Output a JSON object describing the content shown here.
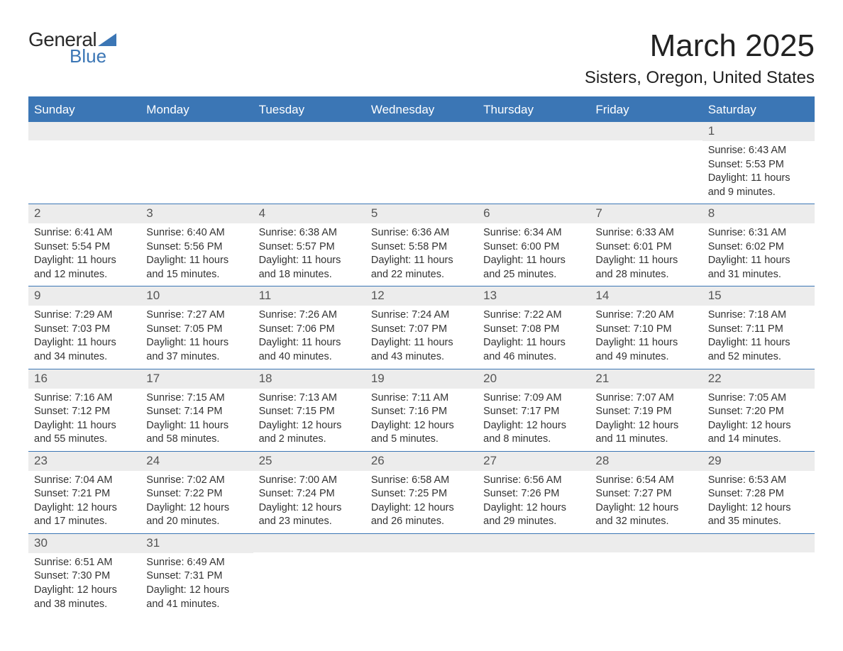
{
  "logo": {
    "word1": "General",
    "word2": "Blue"
  },
  "title": "March 2025",
  "location": "Sisters, Oregon, United States",
  "colors": {
    "header_bg": "#3b76b5",
    "header_text": "#ffffff",
    "daynum_bg": "#ececec",
    "daynum_text": "#555555",
    "body_text": "#333333",
    "rule": "#3b76b5"
  },
  "columns": [
    "Sunday",
    "Monday",
    "Tuesday",
    "Wednesday",
    "Thursday",
    "Friday",
    "Saturday"
  ],
  "weeks": [
    [
      {
        "blank": true
      },
      {
        "blank": true
      },
      {
        "blank": true
      },
      {
        "blank": true
      },
      {
        "blank": true
      },
      {
        "blank": true
      },
      {
        "day": "1",
        "sunrise": "Sunrise: 6:43 AM",
        "sunset": "Sunset: 5:53 PM",
        "daylight": "Daylight: 11 hours and 9 minutes."
      }
    ],
    [
      {
        "day": "2",
        "sunrise": "Sunrise: 6:41 AM",
        "sunset": "Sunset: 5:54 PM",
        "daylight": "Daylight: 11 hours and 12 minutes."
      },
      {
        "day": "3",
        "sunrise": "Sunrise: 6:40 AM",
        "sunset": "Sunset: 5:56 PM",
        "daylight": "Daylight: 11 hours and 15 minutes."
      },
      {
        "day": "4",
        "sunrise": "Sunrise: 6:38 AM",
        "sunset": "Sunset: 5:57 PM",
        "daylight": "Daylight: 11 hours and 18 minutes."
      },
      {
        "day": "5",
        "sunrise": "Sunrise: 6:36 AM",
        "sunset": "Sunset: 5:58 PM",
        "daylight": "Daylight: 11 hours and 22 minutes."
      },
      {
        "day": "6",
        "sunrise": "Sunrise: 6:34 AM",
        "sunset": "Sunset: 6:00 PM",
        "daylight": "Daylight: 11 hours and 25 minutes."
      },
      {
        "day": "7",
        "sunrise": "Sunrise: 6:33 AM",
        "sunset": "Sunset: 6:01 PM",
        "daylight": "Daylight: 11 hours and 28 minutes."
      },
      {
        "day": "8",
        "sunrise": "Sunrise: 6:31 AM",
        "sunset": "Sunset: 6:02 PM",
        "daylight": "Daylight: 11 hours and 31 minutes."
      }
    ],
    [
      {
        "day": "9",
        "sunrise": "Sunrise: 7:29 AM",
        "sunset": "Sunset: 7:03 PM",
        "daylight": "Daylight: 11 hours and 34 minutes."
      },
      {
        "day": "10",
        "sunrise": "Sunrise: 7:27 AM",
        "sunset": "Sunset: 7:05 PM",
        "daylight": "Daylight: 11 hours and 37 minutes."
      },
      {
        "day": "11",
        "sunrise": "Sunrise: 7:26 AM",
        "sunset": "Sunset: 7:06 PM",
        "daylight": "Daylight: 11 hours and 40 minutes."
      },
      {
        "day": "12",
        "sunrise": "Sunrise: 7:24 AM",
        "sunset": "Sunset: 7:07 PM",
        "daylight": "Daylight: 11 hours and 43 minutes."
      },
      {
        "day": "13",
        "sunrise": "Sunrise: 7:22 AM",
        "sunset": "Sunset: 7:08 PM",
        "daylight": "Daylight: 11 hours and 46 minutes."
      },
      {
        "day": "14",
        "sunrise": "Sunrise: 7:20 AM",
        "sunset": "Sunset: 7:10 PM",
        "daylight": "Daylight: 11 hours and 49 minutes."
      },
      {
        "day": "15",
        "sunrise": "Sunrise: 7:18 AM",
        "sunset": "Sunset: 7:11 PM",
        "daylight": "Daylight: 11 hours and 52 minutes."
      }
    ],
    [
      {
        "day": "16",
        "sunrise": "Sunrise: 7:16 AM",
        "sunset": "Sunset: 7:12 PM",
        "daylight": "Daylight: 11 hours and 55 minutes."
      },
      {
        "day": "17",
        "sunrise": "Sunrise: 7:15 AM",
        "sunset": "Sunset: 7:14 PM",
        "daylight": "Daylight: 11 hours and 58 minutes."
      },
      {
        "day": "18",
        "sunrise": "Sunrise: 7:13 AM",
        "sunset": "Sunset: 7:15 PM",
        "daylight": "Daylight: 12 hours and 2 minutes."
      },
      {
        "day": "19",
        "sunrise": "Sunrise: 7:11 AM",
        "sunset": "Sunset: 7:16 PM",
        "daylight": "Daylight: 12 hours and 5 minutes."
      },
      {
        "day": "20",
        "sunrise": "Sunrise: 7:09 AM",
        "sunset": "Sunset: 7:17 PM",
        "daylight": "Daylight: 12 hours and 8 minutes."
      },
      {
        "day": "21",
        "sunrise": "Sunrise: 7:07 AM",
        "sunset": "Sunset: 7:19 PM",
        "daylight": "Daylight: 12 hours and 11 minutes."
      },
      {
        "day": "22",
        "sunrise": "Sunrise: 7:05 AM",
        "sunset": "Sunset: 7:20 PM",
        "daylight": "Daylight: 12 hours and 14 minutes."
      }
    ],
    [
      {
        "day": "23",
        "sunrise": "Sunrise: 7:04 AM",
        "sunset": "Sunset: 7:21 PM",
        "daylight": "Daylight: 12 hours and 17 minutes."
      },
      {
        "day": "24",
        "sunrise": "Sunrise: 7:02 AM",
        "sunset": "Sunset: 7:22 PM",
        "daylight": "Daylight: 12 hours and 20 minutes."
      },
      {
        "day": "25",
        "sunrise": "Sunrise: 7:00 AM",
        "sunset": "Sunset: 7:24 PM",
        "daylight": "Daylight: 12 hours and 23 minutes."
      },
      {
        "day": "26",
        "sunrise": "Sunrise: 6:58 AM",
        "sunset": "Sunset: 7:25 PM",
        "daylight": "Daylight: 12 hours and 26 minutes."
      },
      {
        "day": "27",
        "sunrise": "Sunrise: 6:56 AM",
        "sunset": "Sunset: 7:26 PM",
        "daylight": "Daylight: 12 hours and 29 minutes."
      },
      {
        "day": "28",
        "sunrise": "Sunrise: 6:54 AM",
        "sunset": "Sunset: 7:27 PM",
        "daylight": "Daylight: 12 hours and 32 minutes."
      },
      {
        "day": "29",
        "sunrise": "Sunrise: 6:53 AM",
        "sunset": "Sunset: 7:28 PM",
        "daylight": "Daylight: 12 hours and 35 minutes."
      }
    ],
    [
      {
        "day": "30",
        "sunrise": "Sunrise: 6:51 AM",
        "sunset": "Sunset: 7:30 PM",
        "daylight": "Daylight: 12 hours and 38 minutes."
      },
      {
        "day": "31",
        "sunrise": "Sunrise: 6:49 AM",
        "sunset": "Sunset: 7:31 PM",
        "daylight": "Daylight: 12 hours and 41 minutes."
      },
      {
        "blank": true
      },
      {
        "blank": true
      },
      {
        "blank": true
      },
      {
        "blank": true
      },
      {
        "blank": true
      }
    ]
  ]
}
